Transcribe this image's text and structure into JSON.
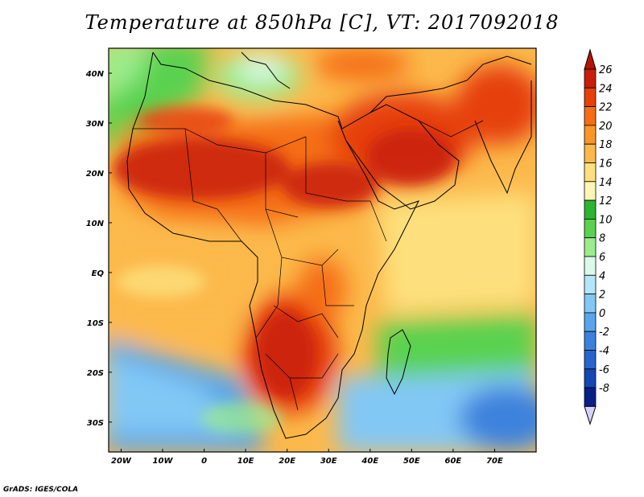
{
  "title": "Temperature at 850hPa [C], VT: 2017092018",
  "footer": "GrADS: IGES/COLA",
  "map": {
    "lon_range": [
      -23,
      80
    ],
    "lat_range": [
      -36,
      45
    ],
    "lon_ticks": [
      {
        "value": -20,
        "label": "20W"
      },
      {
        "value": -10,
        "label": "10W"
      },
      {
        "value": 0,
        "label": "0"
      },
      {
        "value": 10,
        "label": "10E"
      },
      {
        "value": 20,
        "label": "20E"
      },
      {
        "value": 30,
        "label": "30E"
      },
      {
        "value": 40,
        "label": "40E"
      },
      {
        "value": 50,
        "label": "50E"
      },
      {
        "value": 60,
        "label": "60E"
      },
      {
        "value": 70,
        "label": "70E"
      }
    ],
    "lat_ticks": [
      {
        "value": 40,
        "label": "40N"
      },
      {
        "value": 30,
        "label": "30N"
      },
      {
        "value": 20,
        "label": "20N"
      },
      {
        "value": 10,
        "label": "10N"
      },
      {
        "value": 0,
        "label": "EQ"
      },
      {
        "value": -10,
        "label": "10S"
      },
      {
        "value": -20,
        "label": "20S"
      },
      {
        "value": -30,
        "label": "30S"
      }
    ]
  },
  "colorbar": {
    "labels": [
      "26",
      "24",
      "22",
      "20",
      "18",
      "16",
      "14",
      "12",
      "10",
      "8",
      "6",
      "4",
      "2",
      "0",
      "-2",
      "-4",
      "-6",
      "-8"
    ],
    "colors": [
      "#c81e0a",
      "#e6400a",
      "#f56e14",
      "#fa9628",
      "#fcb94b",
      "#fde07d",
      "#fff5b4",
      "#2db432",
      "#5ad250",
      "#9bec8c",
      "#dcfaeb",
      "#b4e6fa",
      "#82c8f5",
      "#5aa5ea",
      "#3c82dc",
      "#2864cd",
      "#1446b4",
      "#0a1e87"
    ],
    "over_color": "#b41407",
    "under_color": "#d2d2fa"
  }
}
